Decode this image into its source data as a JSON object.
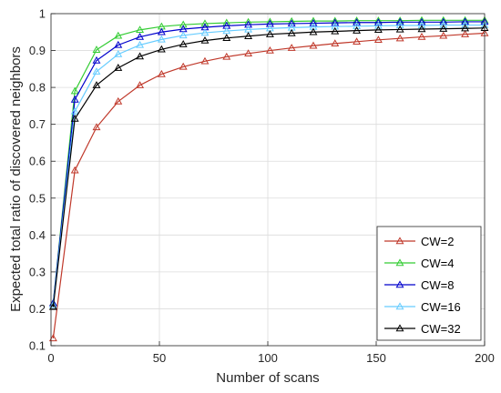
{
  "chart_data": {
    "type": "line",
    "xlabel": "Number of scans",
    "ylabel": "Expected total ratio of discovered neighbors",
    "xlim": [
      0,
      200
    ],
    "ylim": [
      0.1,
      1
    ],
    "xticks": [
      0,
      50,
      100,
      150,
      200
    ],
    "yticks": [
      0.1,
      0.2,
      0.3,
      0.4,
      0.5,
      0.6,
      0.7,
      0.8,
      0.9,
      1
    ],
    "grid": true,
    "legend_position": "bottom-right",
    "marker": "triangle-up",
    "x": [
      1,
      11,
      21,
      31,
      41,
      51,
      61,
      71,
      81,
      91,
      101,
      111,
      121,
      131,
      141,
      151,
      161,
      171,
      181,
      191,
      200
    ],
    "series": [
      {
        "name": "CW=2",
        "color": "#c0392b",
        "values": [
          0.12,
          0.575,
          0.692,
          0.762,
          0.806,
          0.836,
          0.856,
          0.871,
          0.883,
          0.892,
          0.9,
          0.907,
          0.913,
          0.919,
          0.924,
          0.929,
          0.933,
          0.937,
          0.94,
          0.944,
          0.947
        ]
      },
      {
        "name": "CW=4",
        "color": "#33cc33",
        "values": [
          0.215,
          0.79,
          0.902,
          0.94,
          0.956,
          0.965,
          0.97,
          0.973,
          0.975,
          0.977,
          0.978,
          0.979,
          0.98,
          0.98,
          0.981,
          0.981,
          0.981,
          0.982,
          0.982,
          0.982,
          0.982
        ]
      },
      {
        "name": "CW=8",
        "color": "#0000cc",
        "values": [
          0.215,
          0.767,
          0.873,
          0.915,
          0.937,
          0.95,
          0.958,
          0.963,
          0.967,
          0.97,
          0.972,
          0.973,
          0.974,
          0.975,
          0.976,
          0.976,
          0.977,
          0.977,
          0.977,
          0.978,
          0.978
        ]
      },
      {
        "name": "CW=16",
        "color": "#66ccff",
        "values": [
          0.21,
          0.735,
          0.843,
          0.89,
          0.915,
          0.93,
          0.941,
          0.948,
          0.953,
          0.957,
          0.96,
          0.962,
          0.964,
          0.965,
          0.966,
          0.967,
          0.968,
          0.968,
          0.969,
          0.969,
          0.969
        ]
      },
      {
        "name": "CW=32",
        "color": "#000000",
        "values": [
          0.205,
          0.715,
          0.806,
          0.853,
          0.884,
          0.903,
          0.917,
          0.927,
          0.934,
          0.939,
          0.944,
          0.947,
          0.95,
          0.952,
          0.954,
          0.956,
          0.957,
          0.958,
          0.959,
          0.96,
          0.961
        ]
      }
    ]
  }
}
